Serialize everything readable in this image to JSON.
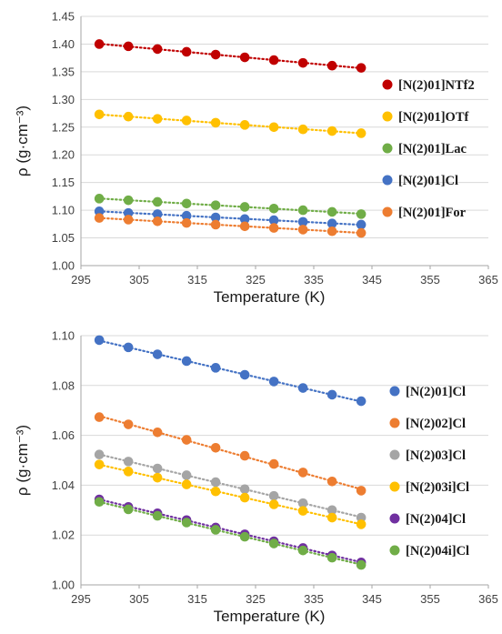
{
  "chart_data": [
    {
      "type": "scatter",
      "xlabel": "Temperature (K)",
      "ylabel": "ρ (g·cm⁻³)",
      "xlim": [
        295,
        365
      ],
      "ylim": [
        1.0,
        1.45
      ],
      "xticks": [
        "295",
        "305",
        "315",
        "325",
        "335",
        "345",
        "355",
        "365"
      ],
      "yticks": [
        "1.00",
        "1.05",
        "1.10",
        "1.15",
        "1.20",
        "1.25",
        "1.30",
        "1.35",
        "1.40",
        "1.45"
      ],
      "grid": "horizontal",
      "legend": "right",
      "trendlines": "dotted linear",
      "x": [
        298.15,
        303.15,
        308.15,
        313.15,
        318.15,
        323.15,
        328.15,
        333.15,
        338.15,
        343.15
      ],
      "series": [
        {
          "name": "[N(2)01]NTf2",
          "color": "#c00000",
          "values": [
            1.4,
            1.396,
            1.391,
            1.386,
            1.381,
            1.376,
            1.371,
            1.366,
            1.361,
            1.357
          ]
        },
        {
          "name": "[N(2)01]OTf",
          "color": "#ffc000",
          "values": [
            1.273,
            1.269,
            1.265,
            1.262,
            1.258,
            1.254,
            1.25,
            1.246,
            1.243,
            1.239
          ]
        },
        {
          "name": "[N(2)01]Lac",
          "color": "#70ad47",
          "values": [
            1.121,
            1.118,
            1.115,
            1.112,
            1.109,
            1.106,
            1.103,
            1.1,
            1.097,
            1.093
          ]
        },
        {
          "name": "[N(2)01]Cl",
          "color": "#4472c4",
          "values": [
            1.098,
            1.095,
            1.093,
            1.09,
            1.087,
            1.084,
            1.082,
            1.079,
            1.076,
            1.074
          ]
        },
        {
          "name": "[N(2)01]For",
          "color": "#ed7d31",
          "values": [
            1.086,
            1.083,
            1.08,
            1.077,
            1.074,
            1.071,
            1.068,
            1.065,
            1.062,
            1.059
          ]
        }
      ]
    },
    {
      "type": "scatter",
      "xlabel": "Temperature (K)",
      "ylabel": "ρ (g·cm⁻³)",
      "xlim": [
        295,
        365
      ],
      "ylim": [
        1.0,
        1.1
      ],
      "xticks": [
        "295",
        "305",
        "315",
        "325",
        "335",
        "345",
        "355",
        "365"
      ],
      "yticks": [
        "1.00",
        "1.02",
        "1.04",
        "1.06",
        "1.08",
        "1.10"
      ],
      "grid": "horizontal",
      "legend": "right",
      "trendlines": "dotted linear",
      "x": [
        298.15,
        303.15,
        308.15,
        313.15,
        318.15,
        323.15,
        328.15,
        333.15,
        338.15,
        343.15
      ],
      "series": [
        {
          "name": "[N(2)01]Cl",
          "color": "#4472c4",
          "values": [
            1.0982,
            1.0953,
            1.0925,
            1.0898,
            1.0871,
            1.0843,
            1.0816,
            1.079,
            1.0763,
            1.0737
          ]
        },
        {
          "name": "[N(2)02]Cl",
          "color": "#ed7d31",
          "values": [
            1.0673,
            1.0644,
            1.0612,
            1.0582,
            1.055,
            1.0518,
            1.0485,
            1.0451,
            1.0415,
            1.0378
          ]
        },
        {
          "name": "[N(2)03]Cl",
          "color": "#a5a5a5",
          "values": [
            1.0523,
            1.0495,
            1.0467,
            1.044,
            1.0412,
            1.0384,
            1.0357,
            1.0328,
            1.03,
            1.027
          ]
        },
        {
          "name": "[N(2)03i]Cl",
          "color": "#ffc000",
          "values": [
            1.0483,
            1.0455,
            1.043,
            1.0403,
            1.0375,
            1.035,
            1.0323,
            1.0297,
            1.027,
            1.0243
          ]
        },
        {
          "name": "[N(2)04]Cl",
          "color": "#7030a0",
          "values": [
            1.0343,
            1.0313,
            1.0287,
            1.026,
            1.023,
            1.0203,
            1.0175,
            1.0148,
            1.0118,
            1.009
          ]
        },
        {
          "name": "[N(2)04i]Cl",
          "color": "#70ad47",
          "values": [
            1.0333,
            1.0303,
            1.0277,
            1.025,
            1.0221,
            1.0193,
            1.0166,
            1.0138,
            1.0109,
            1.008
          ]
        }
      ]
    }
  ]
}
